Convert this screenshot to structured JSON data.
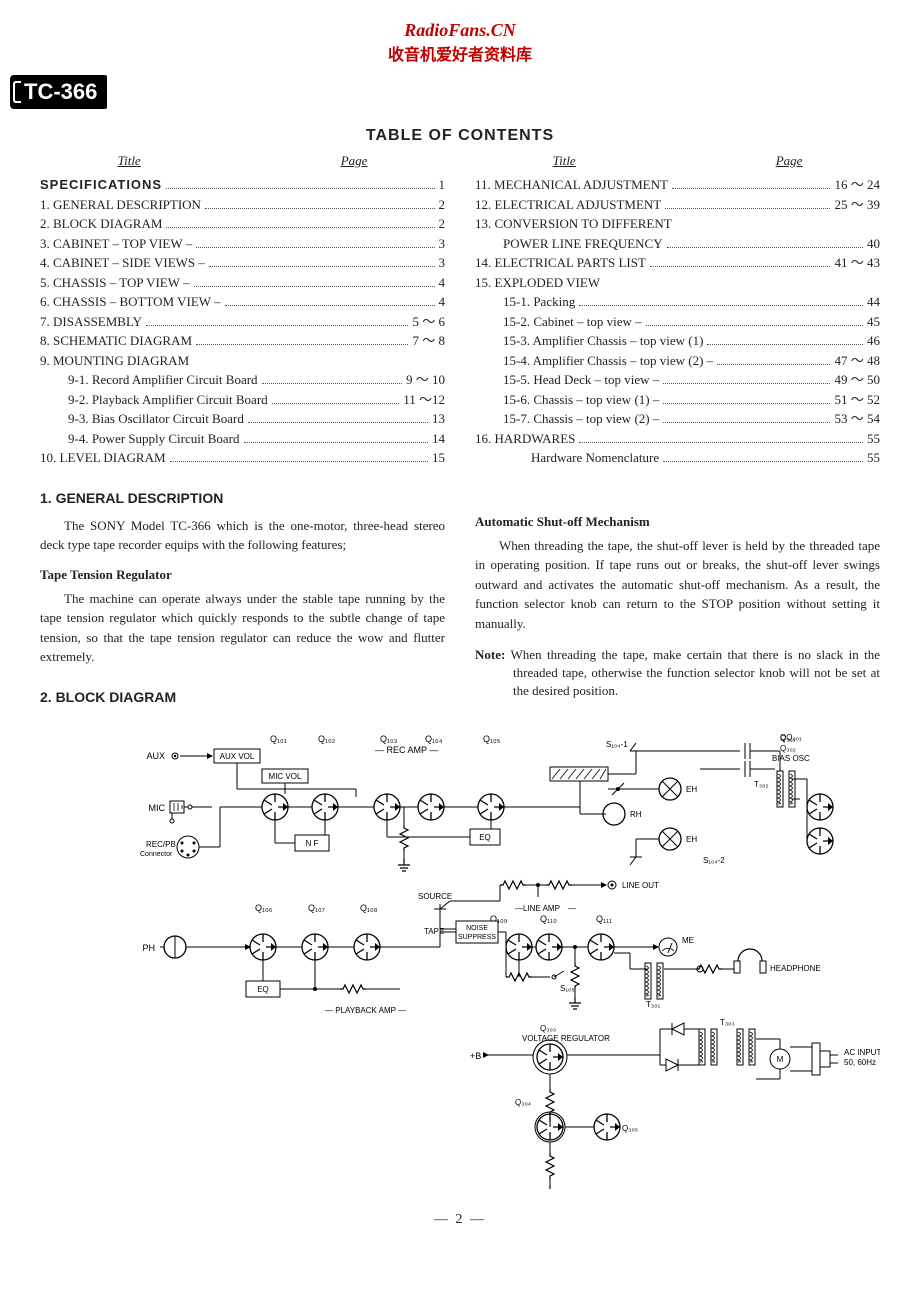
{
  "site": {
    "title": "RadioFans.CN",
    "subtitle": "收音机爱好者资料库"
  },
  "model_badge": "TC-366",
  "toc": {
    "heading": "TABLE OF CONTENTS",
    "col_headers": {
      "title": "Title",
      "page": "Page"
    },
    "left": [
      {
        "label": "SPECIFICATIONS",
        "page": "1",
        "bold": true
      },
      {
        "label": "1. GENERAL DESCRIPTION",
        "page": "2"
      },
      {
        "label": "2. BLOCK DIAGRAM",
        "page": "2"
      },
      {
        "label": "3. CABINET – TOP VIEW –",
        "page": "3"
      },
      {
        "label": "4. CABINET – SIDE VIEWS –",
        "page": "3"
      },
      {
        "label": "5. CHASSIS – TOP VIEW –",
        "page": "4"
      },
      {
        "label": "6. CHASSIS – BOTTOM VIEW –",
        "page": "4"
      },
      {
        "label": "7. DISASSEMBLY",
        "page": "5 ～ 6"
      },
      {
        "label": "8. SCHEMATIC DIAGRAM",
        "page": "7 ～ 8"
      },
      {
        "label": "9. MOUNTING DIAGRAM",
        "page": "",
        "nodots": true
      },
      {
        "label": "9-1.  Record Amplifier Circuit Board",
        "page": "9 ～ 10",
        "indent": 1
      },
      {
        "label": "9-2.  Playback Amplifier Circuit Board",
        "page": "11 ～12",
        "indent": 1
      },
      {
        "label": "9-3.  Bias Oscillator Circuit Board",
        "page": "13",
        "indent": 1
      },
      {
        "label": "9-4.  Power Supply Circuit Board",
        "page": "14",
        "indent": 1
      },
      {
        "label": "10. LEVEL DIAGRAM",
        "page": "15"
      }
    ],
    "right": [
      {
        "label": "11. MECHANICAL ADJUSTMENT",
        "page": "16 ～ 24"
      },
      {
        "label": "12. ELECTRICAL ADJUSTMENT",
        "page": "25 ～ 39"
      },
      {
        "label": "13. CONVERSION TO DIFFERENT",
        "page": "",
        "nodots": true
      },
      {
        "label": "POWER LINE FREQUENCY",
        "page": "40",
        "indent": 1
      },
      {
        "label": "14. ELECTRICAL PARTS LIST",
        "page": "41 ～ 43"
      },
      {
        "label": "15. EXPLODED VIEW",
        "page": "",
        "nodots": true
      },
      {
        "label": "15-1. Packing",
        "page": "44",
        "indent": 1
      },
      {
        "label": "15-2. Cabinet – top view –",
        "page": "45",
        "indent": 1
      },
      {
        "label": "15-3. Amplifier Chassis – top view (1)",
        "page": "46",
        "indent": 1
      },
      {
        "label": "15-4. Amplifier Chassis – top view (2) –",
        "page": "47 ～ 48",
        "indent": 1
      },
      {
        "label": "15-5. Head Deck – top view –",
        "page": "49 ～ 50",
        "indent": 1
      },
      {
        "label": "15-6. Chassis – top view (1) –",
        "page": "51 ～ 52",
        "indent": 1
      },
      {
        "label": "15-7. Chassis – top view (2) –",
        "page": "53 ～ 54",
        "indent": 1
      },
      {
        "label": "16. HARDWARES",
        "page": "55"
      },
      {
        "label": "Hardware Nomenclature",
        "page": "55",
        "indent": 2
      }
    ]
  },
  "sections": {
    "s1": {
      "heading": "1. GENERAL DESCRIPTION",
      "p1": "The SONY Model TC-366 which is the one-motor, three-head stereo deck type tape recorder equips with the following features;",
      "sub1": "Tape Tension Regulator",
      "p2": "The machine can operate always under the stable tape running by the tape tension regulator which quickly responds to the subtle change of tape tension, so that the tape tension regulator can reduce the wow and flutter extremely.",
      "sub2": "Automatic Shut-off Mechanism",
      "p3": "When threading the tape, the shut-off lever is held by the threaded tape in operating position. If tape runs out or breaks, the shut-off lever swings outward and activates the automatic shut-off mechanism. As a result, the function selector knob can return to the STOP position without setting it manually.",
      "note_label": "Note:",
      "note": "When threading the tape, make certain that there is no slack in the threaded tape, otherwise the function selector knob will not be set at the desired position."
    },
    "s2": {
      "heading": "2. BLOCK DIAGRAM"
    }
  },
  "diagram": {
    "type": "block-diagram",
    "background_color": "#ffffff",
    "stroke": "#000000",
    "labels": {
      "aux": "AUX",
      "aux_vol": "AUX VOL",
      "mic": "MIC",
      "mic_vol": "MIC VOL",
      "nf": "N F",
      "rec_pb": "REC/PB",
      "connector": "Connector",
      "q101": "Q₁₀₁",
      "q102": "Q₁₀₂",
      "q103": "Q₁₀₃",
      "q104": "Q₁₀₄",
      "q105": "Q₁₀₅",
      "q106": "Q₁₀₆",
      "q107": "Q₁₀₇",
      "q108": "Q₁₀₈",
      "q109": "Q₁₀₉",
      "q110": "Q₁₁₀",
      "q111": "Q₁₁₁",
      "q301": "Q₃₀₁",
      "q302": "Q₃₀₂",
      "q303": "Q₃₀₃",
      "q304": "Q₃₀₄",
      "q305": "Q₃₀₅",
      "rec_amp": "REC AMP",
      "playback_amp": "PLAYBACK AMP",
      "line_amp": "LINE AMP",
      "eq": "EQ",
      "source": "SOURCE",
      "tape": "TAPE",
      "noise": "NOISE",
      "suppress": "SUPPRESS",
      "line_out": "LINE OUT",
      "ph": "PH",
      "eh": "EH",
      "rh": "RH",
      "me": "ME",
      "headphone": "HEADPHONE",
      "bias_osc": "BIAS OSC",
      "voltage_reg": "VOLTAGE REGULATOR",
      "plus_b": "+B",
      "ac_input": "AC INPUT",
      "ac_freq": "50, 60Hz",
      "s104_1": "S₁₀₄-1",
      "s104_2": "S₁₀₄-2",
      "s105": "S₁₀₅",
      "t301": "T₃₀₁",
      "t302": "T₃₀₂",
      "t303": "T₃₀₃",
      "m": "M"
    }
  },
  "page_number": "— 2 —"
}
